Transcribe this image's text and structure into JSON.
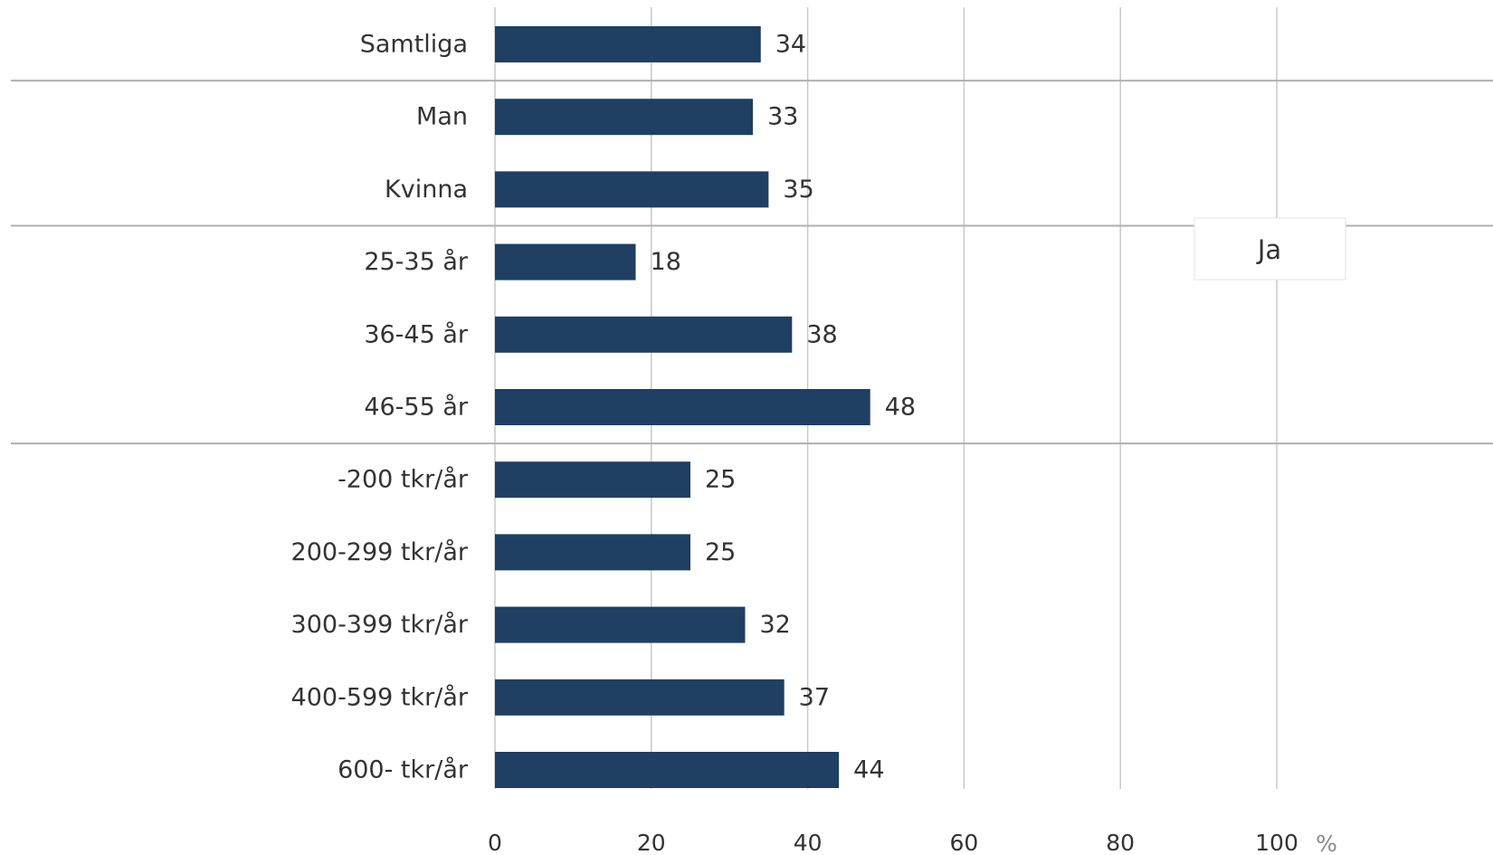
{
  "chart_data": {
    "type": "bar",
    "orientation": "horizontal",
    "categories": [
      "Samtliga",
      "Man",
      "Kvinna",
      "25-35 år",
      "36-45 år",
      "46-55 år",
      "-200 tkr/år",
      "200-299 tkr/år",
      "300-399 tkr/år",
      "400-599 tkr/år",
      "600- tkr/år"
    ],
    "series": [
      {
        "name": "Ja",
        "values": [
          34,
          33,
          35,
          18,
          38,
          48,
          25,
          25,
          32,
          37,
          44
        ],
        "color": "#1f3f63"
      }
    ],
    "value_labels": [
      "34",
      "33",
      "35",
      "18",
      "38",
      "48",
      "25",
      "25",
      "32",
      "37",
      "44"
    ],
    "xticks": [
      0,
      20,
      40,
      60,
      80,
      100
    ],
    "xtick_labels": [
      "0",
      "20",
      "40",
      "60",
      "80",
      "100"
    ],
    "xlim": [
      0,
      100
    ],
    "unit": "%",
    "grid": true,
    "group_separators_after": [
      "Samtliga",
      "Kvinna",
      "46-55 år"
    ],
    "legend": {
      "position": "right",
      "entries": [
        "Ja"
      ]
    },
    "colors": {
      "bar": "#1f3f63",
      "grid": "#c8c8c8",
      "separator": "#b0b0b0",
      "text": "#333333",
      "unit": "#888888"
    }
  }
}
